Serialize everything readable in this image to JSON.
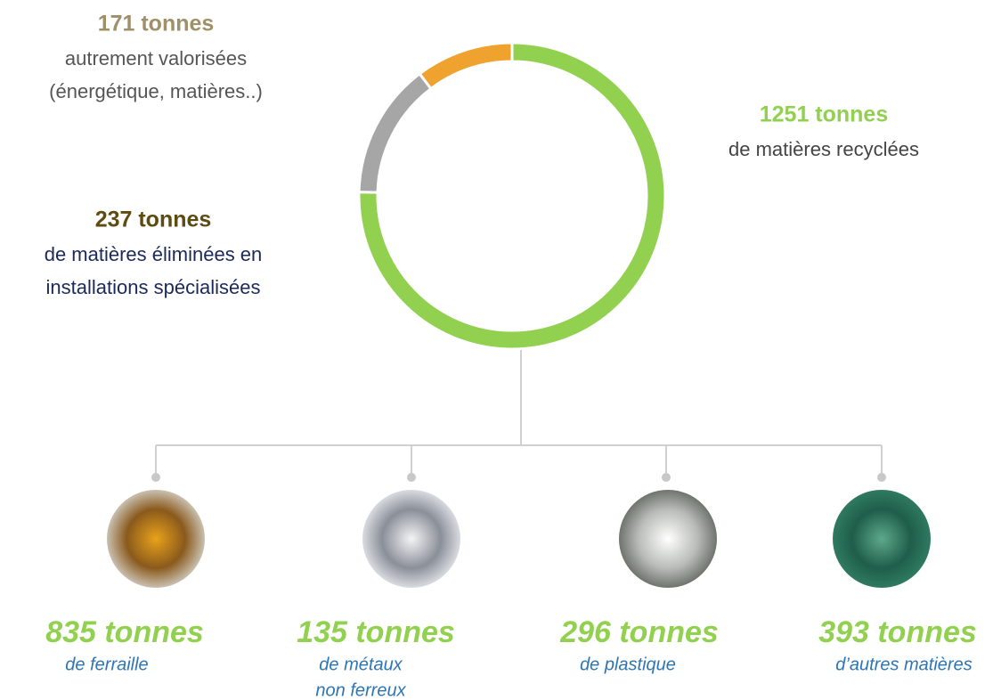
{
  "chart_data": {
    "type": "donut",
    "values": [
      1251,
      237,
      171
    ],
    "value_labels": [
      "1251 tonnes",
      "237 tonnes",
      "171 tonnes"
    ],
    "descriptions": [
      [
        "de matières recyclées"
      ],
      [
        "de matières éliminées en",
        "installations spécialisées"
      ],
      [
        "autrement valorisées",
        "(énergétique, matières..)"
      ]
    ],
    "colors": [
      "#92d050",
      "#a6a6a6",
      "#f0a22e"
    ],
    "breakdown": {
      "values": [
        835,
        135,
        296,
        393
      ],
      "value_labels": [
        "835 tonnes",
        "135 tonnes",
        "296 tonnes",
        "393 tonnes"
      ],
      "descriptions": [
        [
          "de ferraille"
        ],
        [
          "de métaux",
          "non ferreux"
        ],
        [
          "de plastique"
        ],
        [
          "d’autres matières"
        ]
      ]
    }
  }
}
